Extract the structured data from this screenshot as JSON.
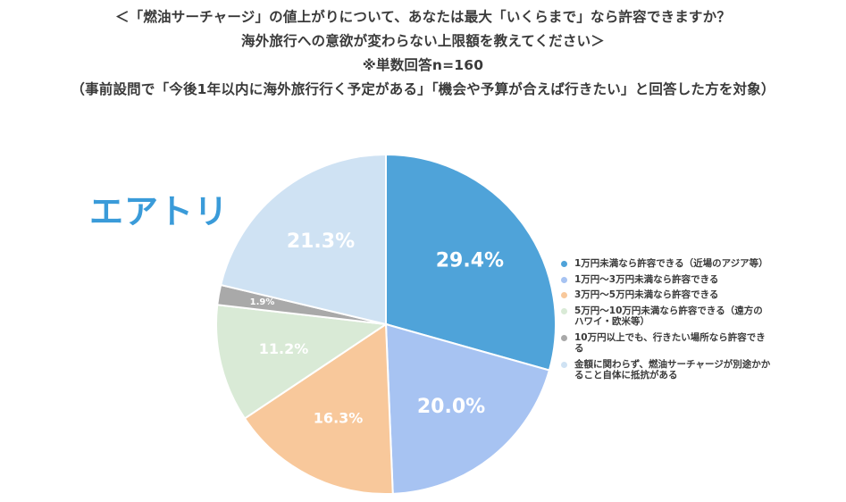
{
  "header": {
    "line1": "＜「燃油サーチャージ」の値上がりについて、あなたは最大「いくらまで」なら許容できますか？",
    "line2": "海外旅行への意欲が変わらない上限額を教えてください＞",
    "line3": "※単数回答n=160",
    "line4": "（事前設問で「今後1年以内に海外旅行行く予定がある」「機会や予算が合えば行きたい」と回答した方を対象）"
  },
  "logo": {
    "text": "エアトリ"
  },
  "chart_data": {
    "type": "pie",
    "start_angle_deg": 0,
    "direction": "clockwise",
    "slices": [
      {
        "label": "1万円未満なら許容できる（近場のアジア等）",
        "value": 29.4,
        "display": "29.4%",
        "color": "#4fa3d9"
      },
      {
        "label": "1万円〜3万円未満なら許容できる",
        "value": 20.0,
        "display": "20.0%",
        "color": "#a7c3f2"
      },
      {
        "label": "3万円〜5万円未満なら許容できる",
        "value": 16.3,
        "display": "16.3%",
        "color": "#f8c89b"
      },
      {
        "label": "5万円〜10万円未満なら許容できる（遠方のハワイ・欧米等）",
        "value": 11.2,
        "display": "11.2%",
        "color": "#d9ead6"
      },
      {
        "label": "10万円以上でも、行きたい場所なら許容できる",
        "value": 1.9,
        "display": "1.9%",
        "color": "#a9a9a9"
      },
      {
        "label": "金額に関わらず、燃油サーチャージが別途かかること自体に抵抗がある",
        "value": 21.3,
        "display": "21.3%",
        "color": "#cfe2f3"
      }
    ]
  }
}
